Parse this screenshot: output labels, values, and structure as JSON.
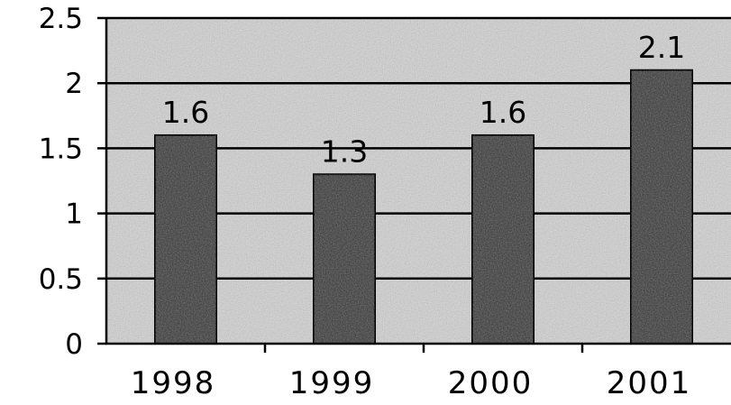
{
  "chart_data": {
    "type": "bar",
    "categories": [
      "1998",
      "1999",
      "2000",
      "2001"
    ],
    "values": [
      1.6,
      1.3,
      1.6,
      2.1
    ],
    "data_labels": [
      "1.6",
      "1.3",
      "1.6",
      "2.1"
    ],
    "y_ticks": [
      {
        "value": 0,
        "label": "0"
      },
      {
        "value": 0.5,
        "label": "0.5"
      },
      {
        "value": 1,
        "label": "1"
      },
      {
        "value": 1.5,
        "label": "1.5"
      },
      {
        "value": 2,
        "label": "2"
      },
      {
        "value": 2.5,
        "label": "2.5"
      }
    ],
    "ylim": [
      0,
      2.5
    ],
    "grid": true,
    "title": "",
    "xlabel": "",
    "ylabel": "",
    "colors": {
      "bar": "#3a3a3a",
      "plot_background": "#d2d2d2",
      "gridline": "#000000",
      "text": "#000000"
    }
  }
}
